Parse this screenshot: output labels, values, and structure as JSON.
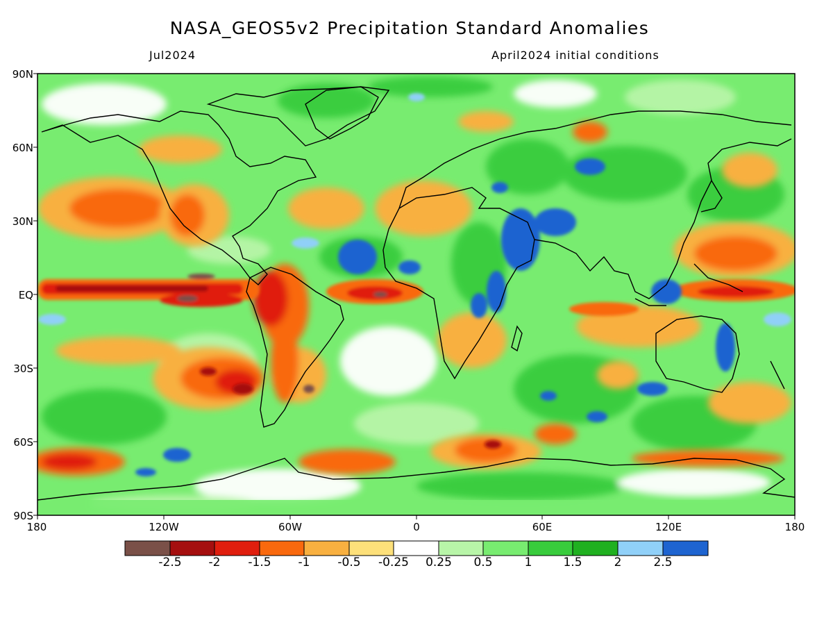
{
  "header": {
    "title": "NASA_GEOS5v2 Precipitation Standard Anomalies",
    "subtitle_left": "Jul2024",
    "subtitle_right": "April2024 initial conditions"
  },
  "axes": {
    "y_ticks": [
      "90N",
      "60N",
      "30N",
      "EQ",
      "30S",
      "60S",
      "90S"
    ],
    "x_ticks": [
      "180",
      "120W",
      "60W",
      "0",
      "60E",
      "120E",
      "180"
    ]
  },
  "legend": {
    "labels": [
      "-2.5",
      "-2",
      "-1.5",
      "-1",
      "-0.5",
      "-0.25",
      "0.25",
      "0.5",
      "1",
      "1.5",
      "2",
      "2.5"
    ],
    "colors": [
      "#7a5048",
      "#a50f0f",
      "#e01e0e",
      "#f9690e",
      "#f8b040",
      "#fde07a",
      "#ffffff",
      "#b8f5a8",
      "#78ec70",
      "#38cc3c",
      "#20b020",
      "#90d0f8",
      "#1e64d0"
    ]
  }
}
